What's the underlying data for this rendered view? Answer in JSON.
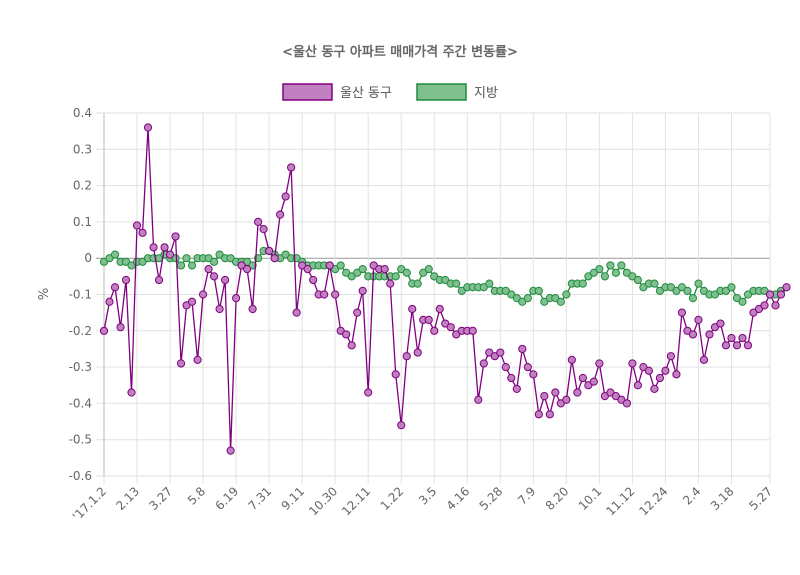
{
  "chart_data": {
    "type": "line",
    "title": "<울산 동구 아파트 매매가격 주간 변동률>",
    "xlabel": "",
    "ylabel": "%",
    "ylim": [
      -0.6,
      0.4
    ],
    "yticks": [
      0.4,
      0.3,
      0.2,
      0.1,
      0,
      -0.1,
      -0.2,
      -0.3,
      -0.4,
      -0.5,
      -0.6
    ],
    "ytick_labels": [
      "0.4",
      "0.3",
      "0.2",
      "0.1",
      "0",
      "-0.1",
      "-0.2",
      "-0.3",
      "-0.4",
      "-0.5",
      "-0.6"
    ],
    "xtick_labels": [
      {
        "index": 0,
        "label": "'17.1.2"
      },
      {
        "index": 6,
        "label": "2.13"
      },
      {
        "index": 12,
        "label": "3.27"
      },
      {
        "index": 18,
        "label": "5.8"
      },
      {
        "index": 24,
        "label": "6.19"
      },
      {
        "index": 30,
        "label": "7.31"
      },
      {
        "index": 36,
        "label": "9.11"
      },
      {
        "index": 42,
        "label": "10.30"
      },
      {
        "index": 48,
        "label": "12.11"
      },
      {
        "index": 54,
        "label": "1.22"
      },
      {
        "index": 60,
        "label": "3.5"
      },
      {
        "index": 66,
        "label": "4.16"
      },
      {
        "index": 72,
        "label": "5.28"
      },
      {
        "index": 78,
        "label": "7.9"
      },
      {
        "index": 84,
        "label": "8.20"
      },
      {
        "index": 90,
        "label": "10.1"
      },
      {
        "index": 96,
        "label": "11.12"
      },
      {
        "index": 102,
        "label": "12.24"
      },
      {
        "index": 108,
        "label": "2.4"
      },
      {
        "index": 114,
        "label": "3.18"
      },
      {
        "index": 121,
        "label": "5.27"
      }
    ],
    "point_count": 122,
    "series": [
      {
        "name": "울산 동구",
        "color": "#800080",
        "fill": "#c080c0",
        "values": [
          -0.2,
          -0.12,
          -0.08,
          -0.19,
          -0.06,
          -0.37,
          0.09,
          0.07,
          0.36,
          0.03,
          -0.06,
          0.03,
          0.01,
          0.06,
          -0.29,
          -0.13,
          -0.12,
          -0.28,
          -0.1,
          -0.03,
          -0.05,
          -0.14,
          -0.06,
          -0.53,
          -0.11,
          -0.02,
          -0.03,
          -0.14,
          0.1,
          0.08,
          0.02,
          0.0,
          0.12,
          0.17,
          0.25,
          -0.15,
          -0.02,
          -0.03,
          -0.06,
          -0.1,
          -0.1,
          -0.02,
          -0.1,
          -0.2,
          -0.21,
          -0.24,
          -0.15,
          -0.09,
          -0.37,
          -0.02,
          -0.03,
          -0.03,
          -0.07,
          -0.32,
          -0.46,
          -0.27,
          -0.14,
          -0.26,
          -0.17,
          -0.17,
          -0.2,
          -0.14,
          -0.18,
          -0.19,
          -0.21,
          -0.2,
          -0.2,
          -0.2,
          -0.39,
          -0.29,
          -0.26,
          -0.27,
          -0.26,
          -0.3,
          -0.33,
          -0.36,
          -0.25,
          -0.3,
          -0.32,
          -0.43,
          -0.38,
          -0.43,
          -0.37,
          -0.4,
          -0.39,
          -0.28,
          -0.37,
          -0.33,
          -0.35,
          -0.34,
          -0.29,
          -0.38,
          -0.37,
          -0.38,
          -0.39,
          -0.4,
          -0.29,
          -0.35,
          -0.3,
          -0.31,
          -0.36,
          -0.33,
          -0.31,
          -0.27,
          -0.32,
          -0.15,
          -0.2,
          -0.21,
          -0.17,
          -0.28,
          -0.21,
          -0.19,
          -0.18,
          -0.24,
          -0.22,
          -0.24,
          -0.22,
          -0.24,
          -0.15,
          -0.14,
          -0.13,
          -0.1,
          -0.13,
          -0.1,
          -0.08
        ]
      },
      {
        "name": "지방",
        "color": "#1e8c3c",
        "fill": "#80c090",
        "values": [
          -0.01,
          0.0,
          0.01,
          -0.01,
          -0.01,
          -0.02,
          -0.01,
          -0.01,
          0.0,
          0.0,
          0.0,
          0.01,
          0.0,
          0.0,
          -0.02,
          0.0,
          -0.02,
          0.0,
          0.0,
          0.0,
          -0.01,
          0.01,
          0.0,
          0.0,
          -0.01,
          -0.01,
          -0.01,
          -0.02,
          0.0,
          0.02,
          0.02,
          0.01,
          0.0,
          0.01,
          0.0,
          0.0,
          -0.01,
          -0.02,
          -0.02,
          -0.02,
          -0.02,
          -0.02,
          -0.03,
          -0.02,
          -0.04,
          -0.05,
          -0.04,
          -0.03,
          -0.05,
          -0.05,
          -0.05,
          -0.05,
          -0.05,
          -0.05,
          -0.03,
          -0.04,
          -0.07,
          -0.07,
          -0.04,
          -0.03,
          -0.05,
          -0.06,
          -0.06,
          -0.07,
          -0.07,
          -0.09,
          -0.08,
          -0.08,
          -0.08,
          -0.08,
          -0.07,
          -0.09,
          -0.09,
          -0.09,
          -0.1,
          -0.11,
          -0.12,
          -0.11,
          -0.09,
          -0.09,
          -0.12,
          -0.11,
          -0.11,
          -0.12,
          -0.1,
          -0.07,
          -0.07,
          -0.07,
          -0.05,
          -0.04,
          -0.03,
          -0.05,
          -0.02,
          -0.04,
          -0.02,
          -0.04,
          -0.05,
          -0.06,
          -0.08,
          -0.07,
          -0.07,
          -0.09,
          -0.08,
          -0.08,
          -0.09,
          -0.08,
          -0.09,
          -0.11,
          -0.07,
          -0.09,
          -0.1,
          -0.1,
          -0.09,
          -0.09,
          -0.08,
          -0.11,
          -0.12,
          -0.1,
          -0.09,
          -0.09,
          -0.09,
          -0.1,
          -0.1,
          -0.09
        ]
      }
    ],
    "legend_position": "top",
    "grid": true
  }
}
